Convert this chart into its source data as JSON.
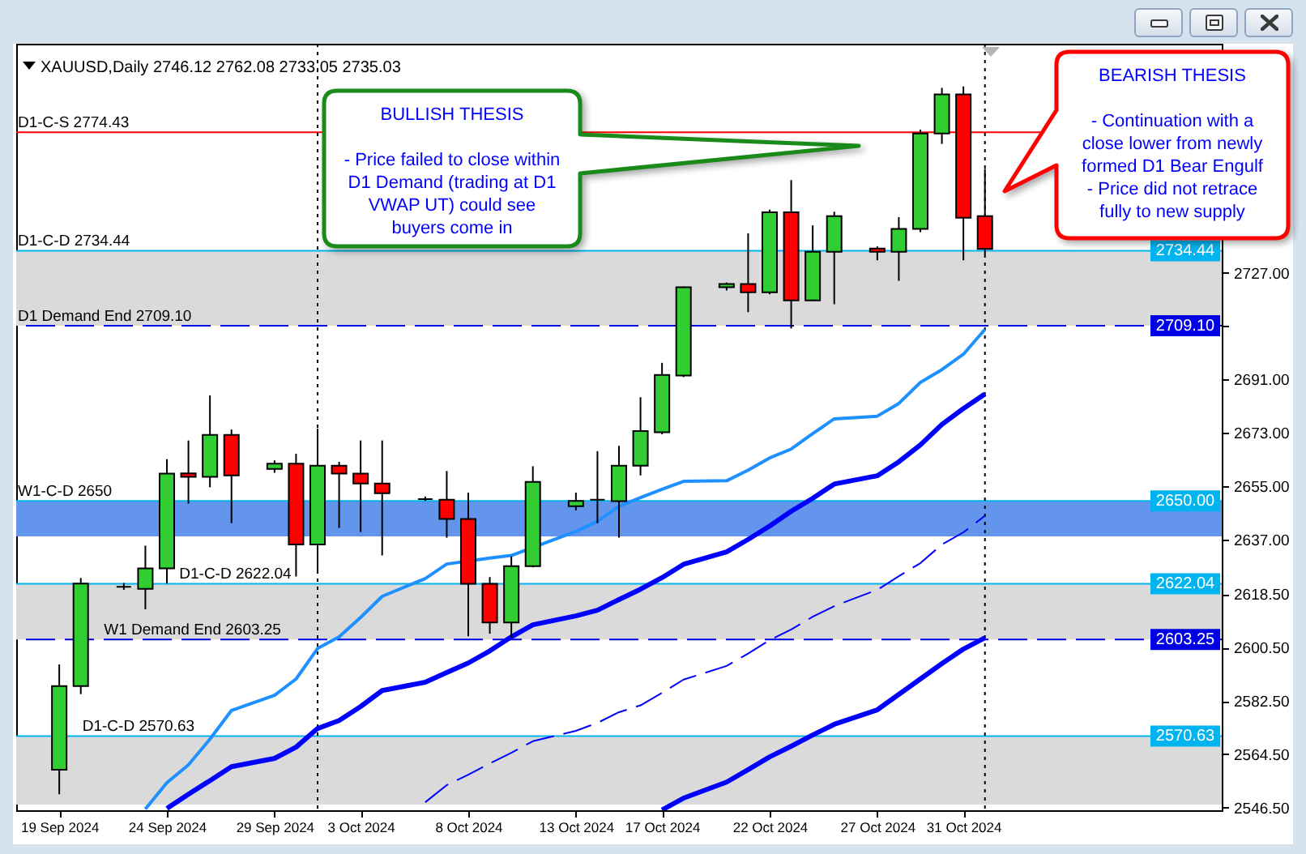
{
  "chart_data": {
    "type": "candlestick",
    "title": "XAUUSD,Daily  2746.12 2762.08 2733.05 2735.03",
    "x": [
      "2024-09-19",
      "2024-09-20",
      "2024-09-22",
      "2024-09-23",
      "2024-09-24",
      "2024-09-25",
      "2024-09-26",
      "2024-09-27",
      "2024-09-29",
      "2024-09-30",
      "2024-10-01",
      "2024-10-02",
      "2024-10-03",
      "2024-10-04",
      "2024-10-06",
      "2024-10-07",
      "2024-10-08",
      "2024-10-09",
      "2024-10-10",
      "2024-10-11",
      "2024-10-13",
      "2024-10-14",
      "2024-10-15",
      "2024-10-16",
      "2024-10-17",
      "2024-10-18",
      "2024-10-20",
      "2024-10-21",
      "2024-10-22",
      "2024-10-23",
      "2024-10-24",
      "2024-10-25",
      "2024-10-27",
      "2024-10-28",
      "2024-10-29",
      "2024-10-30",
      "2024-10-31",
      "2024-11-01"
    ],
    "ohlc": [
      [
        2559.3,
        2594.8,
        2551.0,
        2587.5
      ],
      [
        2587.5,
        2624.0,
        2584.8,
        2622.1
      ],
      [
        2621.0,
        2622.3,
        2620.0,
        2621.0
      ],
      [
        2620.3,
        2634.9,
        2613.4,
        2627.2
      ],
      [
        2627.2,
        2664.1,
        2622.1,
        2659.2
      ],
      [
        2659.3,
        2670.4,
        2649.1,
        2658.1
      ],
      [
        2658.1,
        2685.6,
        2654.6,
        2672.3
      ],
      [
        2672.3,
        2674.1,
        2642.5,
        2658.6
      ],
      [
        2660.8,
        2663.7,
        2659.5,
        2662.6
      ],
      [
        2662.6,
        2665.9,
        2624.5,
        2635.3
      ],
      [
        2635.3,
        2674.4,
        2626.0,
        2661.9
      ],
      [
        2661.9,
        2663.2,
        2640.9,
        2659.2
      ],
      [
        2659.2,
        2670.4,
        2639.5,
        2655.9
      ],
      [
        2655.9,
        2670.4,
        2631.6,
        2652.6
      ],
      [
        2650.6,
        2651.5,
        2650.0,
        2650.6
      ],
      [
        2650.4,
        2660.1,
        2637.6,
        2643.9
      ],
      [
        2643.9,
        2652.8,
        2604.3,
        2622.0
      ],
      [
        2622.0,
        2624.3,
        2605.2,
        2609.0
      ],
      [
        2609.0,
        2631.3,
        2603.9,
        2628.0
      ],
      [
        2628.0,
        2661.7,
        2627.6,
        2656.4
      ],
      [
        2648.2,
        2652.8,
        2646.8,
        2650.0
      ],
      [
        2650.4,
        2666.8,
        2642.5,
        2650.4
      ],
      [
        2649.9,
        2668.6,
        2637.6,
        2661.9
      ],
      [
        2661.9,
        2685.0,
        2658.6,
        2673.6
      ],
      [
        2673.2,
        2696.6,
        2672.5,
        2692.5
      ],
      [
        2692.3,
        2722.4,
        2691.8,
        2722.1
      ],
      [
        2722.1,
        2723.7,
        2721.0,
        2723.2
      ],
      [
        2723.2,
        2740.3,
        2713.7,
        2720.4
      ],
      [
        2720.4,
        2748.3,
        2719.7,
        2747.4
      ],
      [
        2747.4,
        2758.3,
        2708.2,
        2717.7
      ],
      [
        2717.7,
        2743.0,
        2717.5,
        2734.1
      ],
      [
        2734.1,
        2747.6,
        2716.4,
        2746.1
      ],
      [
        2735.2,
        2735.9,
        2731.2,
        2734.1
      ],
      [
        2734.1,
        2745.8,
        2724.3,
        2741.8
      ],
      [
        2741.8,
        2775.3,
        2740.7,
        2774.0
      ],
      [
        2774.0,
        2789.4,
        2770.5,
        2787.2
      ],
      [
        2787.2,
        2789.9,
        2731.2,
        2745.6
      ],
      [
        2746.12,
        2762.08,
        2733.05,
        2735.03
      ]
    ],
    "colors": [
      "#32cd32",
      "#32cd32",
      "#000000",
      "#32cd32",
      "#32cd32",
      "#ff0000",
      "#32cd32",
      "#ff0000",
      "#32cd32",
      "#ff0000",
      "#32cd32",
      "#ff0000",
      "#ff0000",
      "#ff0000",
      "#000000",
      "#ff0000",
      "#ff0000",
      "#ff0000",
      "#32cd32",
      "#32cd32",
      "#32cd32",
      "#000000",
      "#32cd32",
      "#32cd32",
      "#32cd32",
      "#32cd32",
      "#32cd32",
      "#ff0000",
      "#32cd32",
      "#ff0000",
      "#32cd32",
      "#32cd32",
      "#ff0000",
      "#32cd32",
      "#32cd32",
      "#32cd32",
      "#ff0000",
      "#ff0000"
    ],
    "series": [
      {
        "type": "line",
        "color": "#1e90ff",
        "x": [
          "2024-09-23",
          "2024-09-24",
          "2024-09-25",
          "2024-09-26",
          "2024-09-27",
          "2024-09-29",
          "2024-09-30",
          "2024-10-01",
          "2024-10-02",
          "2024-10-03",
          "2024-10-04",
          "2024-10-06",
          "2024-10-07",
          "2024-10-09",
          "2024-10-10",
          "2024-10-13",
          "2024-10-14",
          "2024-10-15",
          "2024-10-16",
          "2024-10-17",
          "2024-10-18",
          "2024-10-20",
          "2024-10-21",
          "2024-10-22",
          "2024-10-23",
          "2024-10-24",
          "2024-10-25",
          "2024-10-27",
          "2024-10-28",
          "2024-10-29",
          "2024-10-30",
          "2024-10-31",
          "2024-11-01"
        ],
        "values": [
          2546.0,
          2554.9,
          2560.9,
          2569.6,
          2579.3,
          2584.4,
          2589.9,
          2600.2,
          2604.1,
          2610.7,
          2617.8,
          2623.8,
          2628.7,
          2630.7,
          2631.6,
          2639.7,
          2643.1,
          2648.2,
          2651.1,
          2653.9,
          2656.6,
          2656.8,
          2660.4,
          2664.5,
          2667.5,
          2672.7,
          2677.7,
          2678.6,
          2682.9,
          2690.0,
          2694.3,
          2699.5,
          2707.9
        ]
      },
      {
        "type": "line",
        "color": "#0000ff",
        "x": [
          "2024-09-24",
          "2024-09-25",
          "2024-09-26",
          "2024-09-27",
          "2024-09-29",
          "2024-09-30",
          "2024-10-01",
          "2024-10-02",
          "2024-10-03",
          "2024-10-04",
          "2024-10-06",
          "2024-10-07",
          "2024-10-08",
          "2024-10-09",
          "2024-10-10",
          "2024-10-11",
          "2024-10-13",
          "2024-10-14",
          "2024-10-15",
          "2024-10-16",
          "2024-10-17",
          "2024-10-18",
          "2024-10-20",
          "2024-10-21",
          "2024-10-22",
          "2024-10-23",
          "2024-10-24",
          "2024-10-25",
          "2024-10-27",
          "2024-10-28",
          "2024-10-29",
          "2024-10-30",
          "2024-10-31",
          "2024-11-01"
        ],
        "values": [
          2546.2,
          2551.0,
          2555.6,
          2560.3,
          2563.1,
          2566.9,
          2573.2,
          2575.9,
          2580.6,
          2586.0,
          2588.8,
          2592.1,
          2595.3,
          2599.4,
          2604.1,
          2608.2,
          2611.2,
          2613.1,
          2616.7,
          2620.2,
          2624.1,
          2628.6,
          2632.8,
          2637.0,
          2641.5,
          2646.5,
          2650.9,
          2655.7,
          2658.5,
          2663.2,
          2668.9,
          2675.8,
          2681.2,
          2686.1
        ]
      },
      {
        "type": "line",
        "color": "#0000ff",
        "line_style": "dashed",
        "x": [
          "2024-10-06",
          "2024-10-07",
          "2024-10-08",
          "2024-10-09",
          "2024-10-10",
          "2024-10-11",
          "2024-10-13",
          "2024-10-14",
          "2024-10-15",
          "2024-10-16",
          "2024-10-17",
          "2024-10-18",
          "2024-10-20",
          "2024-10-21",
          "2024-10-22",
          "2024-10-23",
          "2024-10-24",
          "2024-10-25",
          "2024-10-27",
          "2024-10-28",
          "2024-10-29",
          "2024-10-30",
          "2024-10-31",
          "2024-11-01"
        ],
        "values": [
          2548.3,
          2554.1,
          2557.6,
          2561.4,
          2565.0,
          2568.9,
          2572.4,
          2575.1,
          2578.7,
          2581.0,
          2585.2,
          2589.7,
          2594.3,
          2598.5,
          2603.0,
          2606.6,
          2610.9,
          2614.5,
          2620.0,
          2624.6,
          2629.0,
          2635.3,
          2639.4,
          2645.0
        ]
      },
      {
        "type": "line",
        "color": "#0000ff",
        "x": [
          "2024-10-17",
          "2024-10-18",
          "2024-10-20",
          "2024-10-21",
          "2024-10-22",
          "2024-10-23",
          "2024-10-24",
          "2024-10-25",
          "2024-10-27",
          "2024-10-28",
          "2024-10-29",
          "2024-10-30",
          "2024-10-31",
          "2024-11-01"
        ],
        "values": [
          2545.7,
          2549.7,
          2555.1,
          2559.3,
          2563.6,
          2567.2,
          2571.0,
          2574.6,
          2579.5,
          2584.7,
          2589.9,
          2595.1,
          2600.0,
          2603.8
        ]
      }
    ],
    "xlim": [
      "2024-09-17",
      "2024-11-12"
    ],
    "xticks": [
      {
        "value": "2024-09-19",
        "label": "19 Sep 2024"
      },
      {
        "value": "2024-09-24",
        "label": "24 Sep 2024"
      },
      {
        "value": "2024-09-29",
        "label": "29 Sep 2024"
      },
      {
        "value": "2024-10-03",
        "label": "3 Oct 2024"
      },
      {
        "value": "2024-10-08",
        "label": "8 Oct 2024"
      },
      {
        "value": "2024-10-13",
        "label": "13 Oct 2024"
      },
      {
        "value": "2024-10-17",
        "label": "17 Oct 2024"
      },
      {
        "value": "2024-10-22",
        "label": "22 Oct 2024"
      },
      {
        "value": "2024-10-27",
        "label": "27 Oct 2024"
      },
      {
        "value": "2024-10-31",
        "label": "31 Oct 2024"
      }
    ],
    "ylim": [
      2545.6,
      2804.3
    ],
    "yticks": [
      {
        "value": 2546.5,
        "label": "2546.50"
      },
      {
        "value": 2564.5,
        "label": "2564.50"
      },
      {
        "value": 2582.5,
        "label": "2582.50"
      },
      {
        "value": 2600.5,
        "label": "2600.50"
      },
      {
        "value": 2618.5,
        "label": "2618.50"
      },
      {
        "value": 2637,
        "label": "2637.00"
      },
      {
        "value": 2655,
        "label": "2655.00"
      },
      {
        "value": 2673,
        "label": "2673.00"
      },
      {
        "value": 2691,
        "label": "2691.00"
      },
      {
        "value": 2709,
        "label": null
      },
      {
        "value": 2727,
        "label": "2727.00"
      }
    ],
    "bands": [
      {
        "axis": "y",
        "from": 2709.1,
        "to": 2734.44,
        "color": "#dadada"
      },
      {
        "axis": "y",
        "from": 2603.25,
        "to": 2622.04,
        "color": "#dadada"
      },
      {
        "axis": "y",
        "from": 2547.5,
        "to": 2570.63,
        "color": "#dadada"
      },
      {
        "axis": "y",
        "from": 2638,
        "to": 2650,
        "color": "#6495ed"
      }
    ],
    "ref_lines": [
      {
        "axis": "y",
        "value": 2774.43,
        "color": "#ff0000"
      },
      {
        "axis": "y",
        "value": 2734.44,
        "label": "2734.44",
        "color": "#00b4f0"
      },
      {
        "axis": "y",
        "value": 2709.1,
        "label": "2709.10",
        "color": "#0000e6",
        "line_style": "dashed"
      },
      {
        "axis": "y",
        "value": 2650,
        "label": "2650.00",
        "color": "#00b4f0"
      },
      {
        "axis": "y",
        "value": 2622.04,
        "label": "2622.04",
        "color": "#00b4f0"
      },
      {
        "axis": "y",
        "value": 2603.25,
        "label": "2603.25",
        "color": "#0000e6",
        "line_style": "dashed"
      },
      {
        "axis": "y",
        "value": 2570.63,
        "label": "2570.63",
        "color": "#00b4f0"
      },
      {
        "axis": "x",
        "value": "2024-10-01",
        "color": "#000000",
        "line_style": "dotted"
      },
      {
        "axis": "x",
        "value": "2024-11-01",
        "color": "#000000",
        "line_style": "dotted"
      }
    ],
    "annotations": [
      {
        "text": "D1-C-S 2774.43",
        "x": "2024-09-17",
        "y": 2774.43
      },
      {
        "text": "D1-C-D 2734.44",
        "x": "2024-09-17",
        "y": 2734.44
      },
      {
        "text": "D1 Demand End 2709.10",
        "x": "2024-09-17",
        "y": 2709.1
      },
      {
        "text": "W1-C-D 2650",
        "x": "2024-09-17",
        "y": 2650
      },
      {
        "text": "D1-C-D 2622.04",
        "x": "2024-09-24T12:00",
        "y": 2622.04
      },
      {
        "text": "W1 Demand End 2603.25",
        "x": "2024-09-21",
        "y": 2603.25
      },
      {
        "text": "D1-C-D 2570.63",
        "x": "2024-09-20",
        "y": 2570.63
      },
      "BULLISH THESIS\n\n- Price failed to close within D1 Demand (trading at D1 VWAP UT) could see buyers come in",
      "BEARISH THESIS\n\n- Continuation with a close lower from newly formed D1 Bear Engulf\n- Price did not retrace fully to new supply"
    ]
  }
}
